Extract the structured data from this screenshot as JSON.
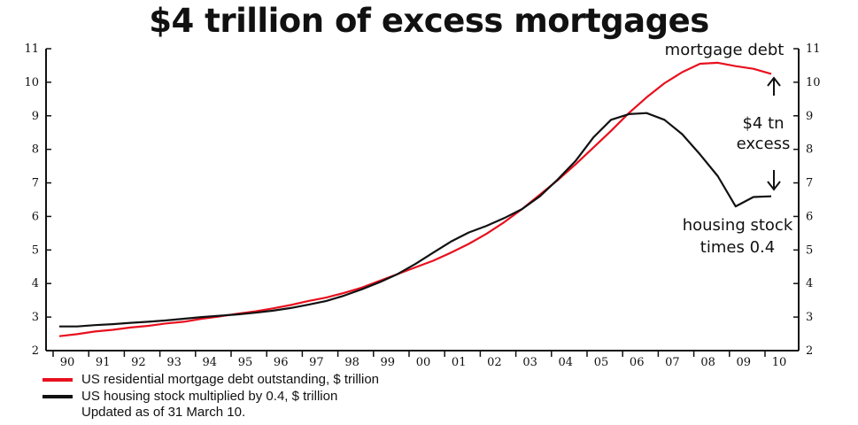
{
  "chart_data": {
    "type": "line",
    "title": "$4 trillion of excess mortgages",
    "xlabel": "",
    "ylabel": "",
    "x_tick_labels": [
      "90",
      "91",
      "92",
      "93",
      "94",
      "95",
      "96",
      "97",
      "98",
      "99",
      "00",
      "01",
      "02",
      "03",
      "04",
      "05",
      "06",
      "07",
      "08",
      "09",
      "10"
    ],
    "y_ticks": [
      2,
      3,
      4,
      5,
      6,
      7,
      8,
      9,
      10,
      11
    ],
    "ylim": [
      2,
      11
    ],
    "xlim": [
      1990,
      2010.25
    ],
    "grid": false,
    "series": [
      {
        "name": "US residential mortgage debt outstanding, $ trillion",
        "color": "#e8101e",
        "points": [
          [
            1990.0,
            2.43
          ],
          [
            1990.5,
            2.49
          ],
          [
            1991.0,
            2.57
          ],
          [
            1991.5,
            2.62
          ],
          [
            1992.0,
            2.69
          ],
          [
            1992.5,
            2.74
          ],
          [
            1993.0,
            2.81
          ],
          [
            1993.5,
            2.86
          ],
          [
            1994.0,
            2.95
          ],
          [
            1994.5,
            3.02
          ],
          [
            1995.0,
            3.1
          ],
          [
            1995.5,
            3.17
          ],
          [
            1996.0,
            3.26
          ],
          [
            1996.5,
            3.36
          ],
          [
            1997.0,
            3.48
          ],
          [
            1997.5,
            3.58
          ],
          [
            1998.0,
            3.72
          ],
          [
            1998.5,
            3.88
          ],
          [
            1999.0,
            4.08
          ],
          [
            1999.5,
            4.28
          ],
          [
            2000.0,
            4.48
          ],
          [
            2000.5,
            4.68
          ],
          [
            2001.0,
            4.92
          ],
          [
            2001.5,
            5.18
          ],
          [
            2002.0,
            5.48
          ],
          [
            2002.5,
            5.83
          ],
          [
            2003.0,
            6.22
          ],
          [
            2003.5,
            6.65
          ],
          [
            2004.0,
            7.08
          ],
          [
            2004.5,
            7.55
          ],
          [
            2005.0,
            8.05
          ],
          [
            2005.5,
            8.55
          ],
          [
            2006.0,
            9.08
          ],
          [
            2006.5,
            9.55
          ],
          [
            2007.0,
            9.97
          ],
          [
            2007.5,
            10.3
          ],
          [
            2008.0,
            10.55
          ],
          [
            2008.5,
            10.58
          ],
          [
            2009.0,
            10.48
          ],
          [
            2009.5,
            10.4
          ],
          [
            2010.0,
            10.25
          ]
        ]
      },
      {
        "name": "US housing stock multiplied by 0.4, $ trillion",
        "color": "#111111",
        "points": [
          [
            1990.0,
            2.72
          ],
          [
            1990.5,
            2.72
          ],
          [
            1991.0,
            2.76
          ],
          [
            1991.5,
            2.79
          ],
          [
            1992.0,
            2.83
          ],
          [
            1992.5,
            2.86
          ],
          [
            1993.0,
            2.9
          ],
          [
            1993.5,
            2.95
          ],
          [
            1994.0,
            3.0
          ],
          [
            1994.5,
            3.04
          ],
          [
            1995.0,
            3.08
          ],
          [
            1995.5,
            3.13
          ],
          [
            1996.0,
            3.19
          ],
          [
            1996.5,
            3.27
          ],
          [
            1997.0,
            3.37
          ],
          [
            1997.5,
            3.48
          ],
          [
            1998.0,
            3.64
          ],
          [
            1998.5,
            3.83
          ],
          [
            1999.0,
            4.04
          ],
          [
            1999.5,
            4.28
          ],
          [
            2000.0,
            4.58
          ],
          [
            2000.5,
            4.92
          ],
          [
            2001.0,
            5.25
          ],
          [
            2001.5,
            5.52
          ],
          [
            2002.0,
            5.72
          ],
          [
            2002.5,
            5.95
          ],
          [
            2003.0,
            6.22
          ],
          [
            2003.5,
            6.6
          ],
          [
            2004.0,
            7.1
          ],
          [
            2004.5,
            7.65
          ],
          [
            2005.0,
            8.35
          ],
          [
            2005.5,
            8.88
          ],
          [
            2006.0,
            9.05
          ],
          [
            2006.5,
            9.08
          ],
          [
            2007.0,
            8.88
          ],
          [
            2007.5,
            8.45
          ],
          [
            2008.0,
            7.85
          ],
          [
            2008.5,
            7.2
          ],
          [
            2009.0,
            6.3
          ],
          [
            2009.5,
            6.58
          ],
          [
            2010.0,
            6.6
          ]
        ]
      }
    ],
    "annotations": {
      "mortgage_debt": "mortgage debt",
      "excess_line1": "$4 tn",
      "excess_line2": "excess",
      "housing_line1": "housing stock",
      "housing_line2": "times 0.4"
    },
    "legend": [
      {
        "label": "US residential mortgage debt outstanding, $ trillion",
        "color": "#e8101e"
      },
      {
        "label": "US housing stock multiplied by 0.4, $ trillion",
        "color": "#111111"
      }
    ],
    "legend_position": "bottom-left",
    "footnote": "Updated as of 31 March 10."
  }
}
